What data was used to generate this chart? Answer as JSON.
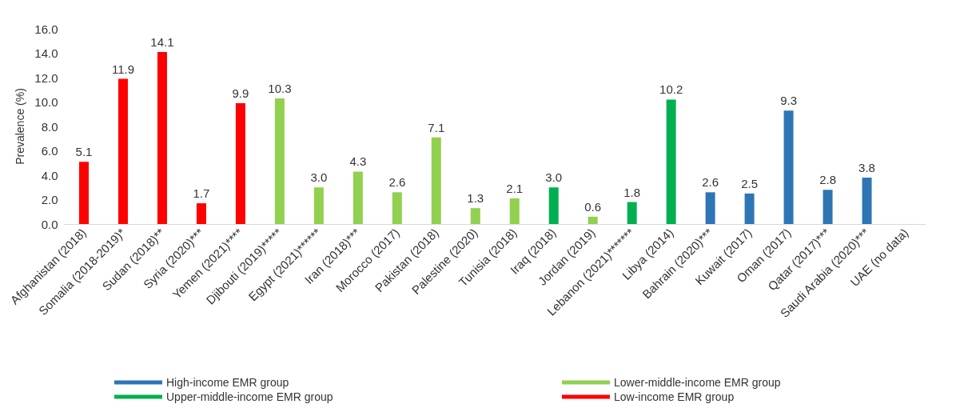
{
  "chart_data": {
    "type": "bar",
    "ylabel": "Prevalence (%)",
    "categories": [
      "Afghanistan (2018)",
      "Somalia (2018-2019)*",
      "Sudan (2018)**",
      "Syria (2020)***",
      "Yemen (2021)****",
      "Djibouti (2019)*****",
      "Egypt (2021)******",
      "Iran (2018)***",
      "Morocco (2017)",
      "Pakistan (2018)",
      "Palestine (2020)",
      "Tunisia (2018)",
      "Iraq (2018)",
      "Jordan (2019)",
      "Lebanon (2021)*******",
      "Libya (2014)",
      "Bahrain (2020)***",
      "Kuwait (2017)",
      "Oman (2017)",
      "Qatar (2017)***",
      "Saudi Arabia (2020)***",
      "UAE (no data)"
    ],
    "series": [
      {
        "name": "High-income EMR group",
        "color": "#2e75b6",
        "values": [
          null,
          null,
          null,
          null,
          null,
          null,
          null,
          null,
          null,
          null,
          null,
          null,
          null,
          null,
          null,
          null,
          2.6,
          2.5,
          9.3,
          2.8,
          3.8,
          null
        ],
        "value_labels": [
          null,
          null,
          null,
          null,
          null,
          null,
          null,
          null,
          null,
          null,
          null,
          null,
          null,
          null,
          null,
          null,
          "2.6",
          "2.5",
          "9.3",
          "2.8",
          "3.8",
          null
        ]
      },
      {
        "name": "Lower-middle-income EMR group",
        "color": "#92d050",
        "values": [
          null,
          null,
          null,
          null,
          null,
          10.3,
          3.0,
          4.3,
          2.6,
          7.1,
          1.3,
          2.1,
          null,
          0.6,
          null,
          null,
          null,
          null,
          null,
          null,
          null,
          null
        ],
        "value_labels": [
          null,
          null,
          null,
          null,
          null,
          "10.3",
          "3.0",
          "4.3",
          "2.6",
          "7.1",
          "1.3",
          "2.1",
          null,
          "0.6",
          null,
          null,
          null,
          null,
          null,
          null,
          null,
          null
        ]
      },
      {
        "name": "Upper-middle-income EMR group",
        "color": "#00b050",
        "values": [
          null,
          null,
          null,
          null,
          null,
          null,
          null,
          null,
          null,
          null,
          null,
          null,
          3.0,
          null,
          1.8,
          10.2,
          null,
          null,
          null,
          null,
          null,
          null
        ],
        "value_labels": [
          null,
          null,
          null,
          null,
          null,
          null,
          null,
          null,
          null,
          null,
          null,
          null,
          "3.0",
          null,
          "1.8",
          "10.2",
          null,
          null,
          null,
          null,
          null,
          null
        ]
      },
      {
        "name": "Low-income EMR group",
        "color": "#ff0000",
        "values": [
          5.1,
          11.9,
          14.1,
          1.7,
          9.9,
          null,
          null,
          null,
          null,
          null,
          null,
          null,
          null,
          null,
          null,
          null,
          null,
          null,
          null,
          null,
          null,
          null
        ],
        "value_labels": [
          "5.1",
          "11.9",
          "14.1",
          "1.7",
          "9.9",
          null,
          null,
          null,
          null,
          null,
          null,
          null,
          null,
          null,
          null,
          null,
          null,
          null,
          null,
          null,
          null,
          null
        ]
      }
    ],
    "stacked": true,
    "ylim": [
      0,
      16
    ],
    "yticks": [
      {
        "value": 0,
        "label": "0.0"
      },
      {
        "value": 2,
        "label": "2.0"
      },
      {
        "value": 4,
        "label": "4.0"
      },
      {
        "value": 6,
        "label": "6.0"
      },
      {
        "value": 8,
        "label": "8.0"
      },
      {
        "value": 10,
        "label": "10.0"
      },
      {
        "value": 12,
        "label": "12.0"
      },
      {
        "value": 14,
        "label": "14.0"
      },
      {
        "value": 16,
        "label": "16.0"
      }
    ],
    "grid": false,
    "legend": "bottom"
  }
}
